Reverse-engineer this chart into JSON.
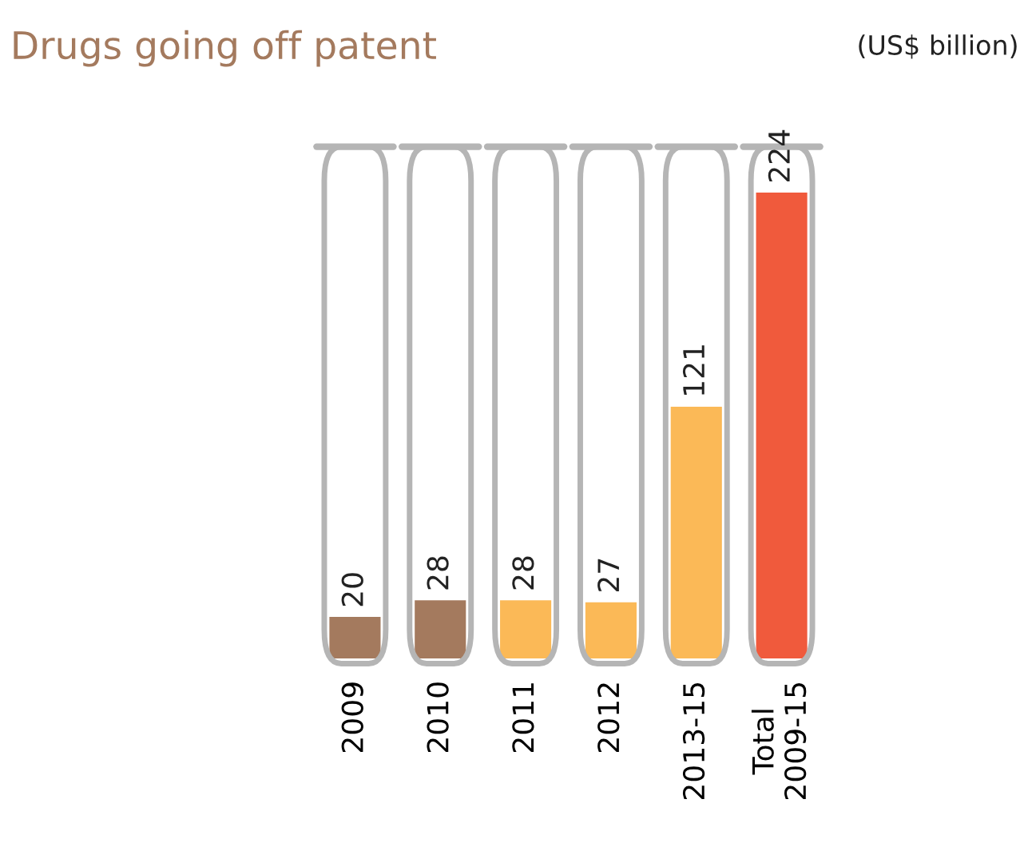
{
  "chart_data": {
    "type": "bar",
    "title": "Drugs going off patent",
    "subtitle": "(US$ billion)",
    "categories": [
      "2009",
      "2010",
      "2011",
      "2012",
      "2013-15",
      "Total\n2009-15"
    ],
    "values": [
      20,
      28,
      28,
      27,
      121,
      224
    ],
    "colors": [
      "#a47a5e",
      "#a47a5e",
      "#fbb957",
      "#fbb957",
      "#fbb957",
      "#f05a3c"
    ],
    "ylim": [
      0,
      246
    ],
    "data_labels": true,
    "grid": false,
    "legend": false
  }
}
